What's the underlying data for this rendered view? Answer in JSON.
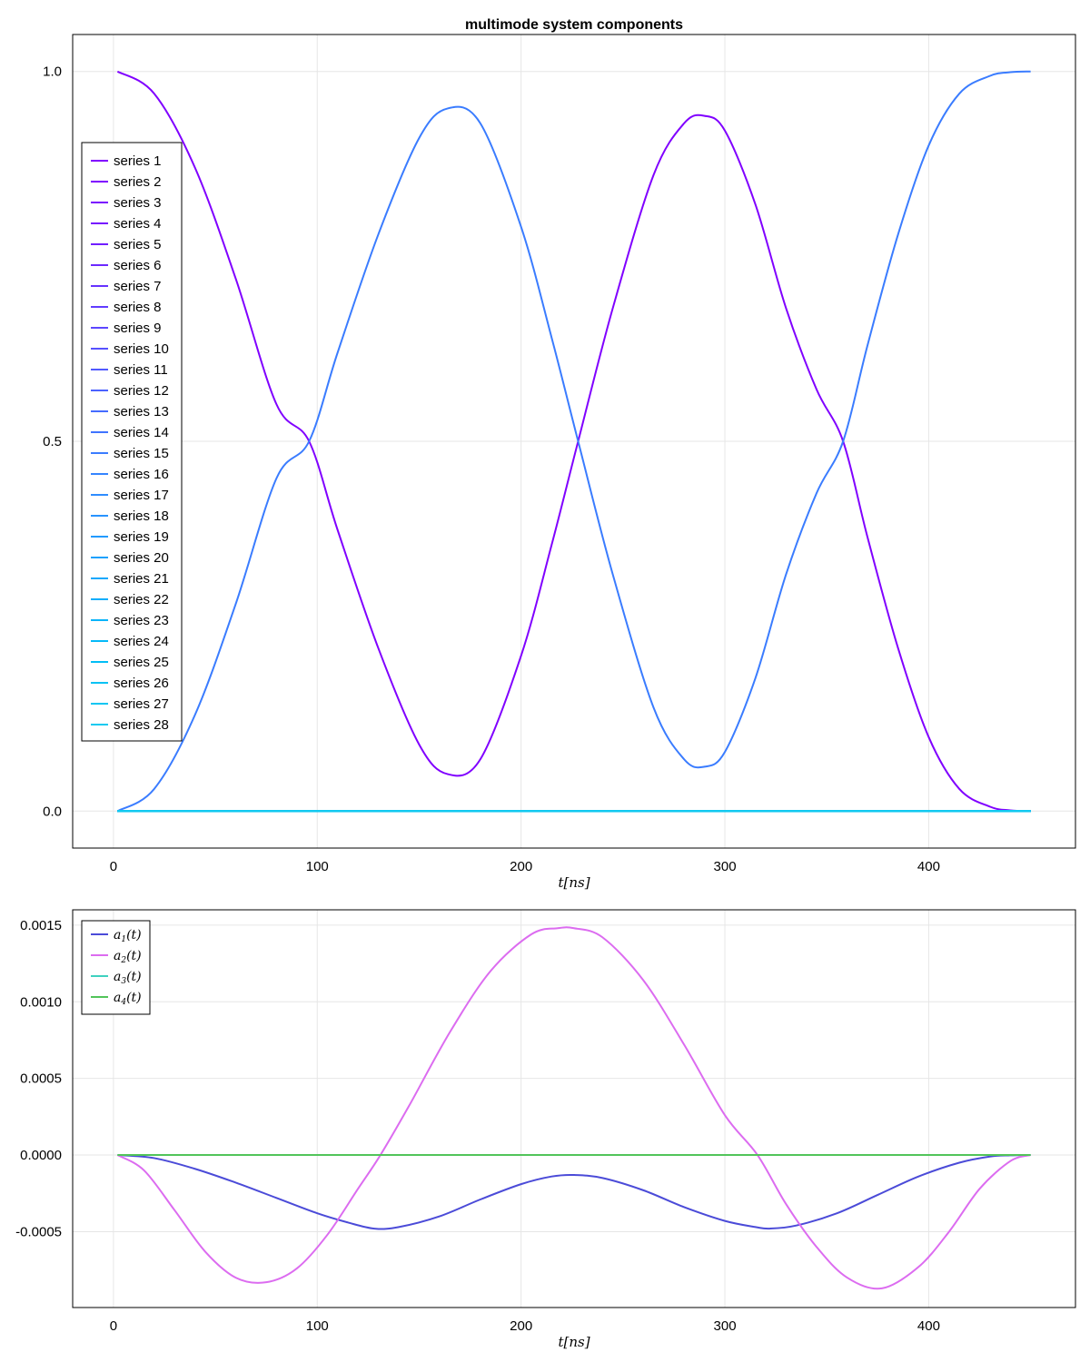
{
  "chart_data": [
    {
      "type": "line",
      "title": "multimode system components",
      "xlabel": "t[ns]",
      "ylabel": "",
      "xlim": [
        -20,
        472
      ],
      "ylim": [
        -0.05,
        1.05
      ],
      "xticks": [
        0,
        100,
        200,
        300,
        400
      ],
      "xtick_labels": [
        "0",
        "100",
        "200",
        "300",
        "400"
      ],
      "yticks": [
        0.0,
        0.5,
        1.0
      ],
      "ytick_labels": [
        "0.0",
        "0.5",
        "1.0"
      ],
      "grid": true,
      "legend_position": "left",
      "series": [
        {
          "name": "series 1",
          "color": "#8000ff",
          "x": [
            2,
            20,
            40,
            60,
            80,
            96,
            110,
            130,
            150,
            164,
            180,
            200,
            215,
            228,
            245,
            265,
            280,
            290,
            300,
            315,
            330,
            345,
            358,
            370,
            385,
            400,
            415,
            430,
            440,
            450
          ],
          "y": [
            1.0,
            0.97,
            0.87,
            0.72,
            0.55,
            0.5,
            0.38,
            0.22,
            0.09,
            0.05,
            0.07,
            0.21,
            0.36,
            0.5,
            0.68,
            0.86,
            0.93,
            0.94,
            0.92,
            0.82,
            0.68,
            0.57,
            0.5,
            0.37,
            0.22,
            0.1,
            0.03,
            0.006,
            0.001,
            0.0
          ]
        },
        {
          "name": "series 2",
          "color": "#7f00ff",
          "x": [
            2,
            450
          ],
          "y": [
            0,
            0
          ]
        },
        {
          "name": "series 3",
          "color": "#7a0aff",
          "x": [
            2,
            450
          ],
          "y": [
            0,
            0
          ]
        },
        {
          "name": "series 4",
          "color": "#7614ff",
          "x": [
            2,
            450
          ],
          "y": [
            0,
            0
          ]
        },
        {
          "name": "series 5",
          "color": "#711eff",
          "x": [
            2,
            450
          ],
          "y": [
            0,
            0
          ]
        },
        {
          "name": "series 6",
          "color": "#6c28ff",
          "x": [
            2,
            450
          ],
          "y": [
            0,
            0
          ]
        },
        {
          "name": "series 7",
          "color": "#6632ff",
          "x": [
            2,
            450
          ],
          "y": [
            0,
            0
          ]
        },
        {
          "name": "series 8",
          "color": "#613cff",
          "x": [
            2,
            450
          ],
          "y": [
            0,
            0
          ]
        },
        {
          "name": "series 9",
          "color": "#5c46ff",
          "x": [
            2,
            450
          ],
          "y": [
            0,
            0
          ]
        },
        {
          "name": "series 10",
          "color": "#5650ff",
          "x": [
            2,
            450
          ],
          "y": [
            0,
            0
          ]
        },
        {
          "name": "series 11",
          "color": "#5159ff",
          "x": [
            2,
            450
          ],
          "y": [
            0,
            0
          ]
        },
        {
          "name": "series 12",
          "color": "#4b62ff",
          "x": [
            2,
            450
          ],
          "y": [
            0,
            0
          ]
        },
        {
          "name": "series 13",
          "color": "#456bff",
          "x": [
            2,
            450
          ],
          "y": [
            0,
            0
          ]
        },
        {
          "name": "series 14",
          "color": "#3f74ff",
          "x": [
            2,
            450
          ],
          "y": [
            0,
            0
          ]
        },
        {
          "name": "series 15",
          "color": "#3a7cff",
          "x": [
            2,
            20,
            40,
            60,
            80,
            96,
            110,
            130,
            150,
            164,
            180,
            200,
            215,
            228,
            245,
            265,
            280,
            290,
            300,
            315,
            330,
            345,
            358,
            370,
            385,
            400,
            415,
            430,
            440,
            450
          ],
          "y": [
            0.0,
            0.03,
            0.13,
            0.28,
            0.45,
            0.5,
            0.62,
            0.78,
            0.91,
            0.95,
            0.93,
            0.79,
            0.64,
            0.5,
            0.32,
            0.14,
            0.07,
            0.06,
            0.08,
            0.18,
            0.32,
            0.43,
            0.5,
            0.63,
            0.78,
            0.9,
            0.97,
            0.994,
            0.999,
            1.0
          ]
        },
        {
          "name": "series 16",
          "color": "#3484ff",
          "x": [
            2,
            450
          ],
          "y": [
            0,
            0
          ]
        },
        {
          "name": "series 17",
          "color": "#2e8cff",
          "x": [
            2,
            450
          ],
          "y": [
            0,
            0
          ]
        },
        {
          "name": "series 18",
          "color": "#2893ff",
          "x": [
            2,
            450
          ],
          "y": [
            0,
            0
          ]
        },
        {
          "name": "series 19",
          "color": "#229afe",
          "x": [
            2,
            450
          ],
          "y": [
            0,
            0
          ]
        },
        {
          "name": "series 20",
          "color": "#1ca1fd",
          "x": [
            2,
            450
          ],
          "y": [
            0,
            0
          ]
        },
        {
          "name": "series 21",
          "color": "#16a8fc",
          "x": [
            2,
            450
          ],
          "y": [
            0,
            0
          ]
        },
        {
          "name": "series 22",
          "color": "#10aefb",
          "x": [
            2,
            450
          ],
          "y": [
            0,
            0
          ]
        },
        {
          "name": "series 23",
          "color": "#0ab4fa",
          "x": [
            2,
            450
          ],
          "y": [
            0,
            0
          ]
        },
        {
          "name": "series 24",
          "color": "#05b9f8",
          "x": [
            2,
            450
          ],
          "y": [
            0,
            0
          ]
        },
        {
          "name": "series 25",
          "color": "#01bef6",
          "x": [
            2,
            450
          ],
          "y": [
            0,
            0
          ]
        },
        {
          "name": "series 26",
          "color": "#06c2f4",
          "x": [
            2,
            450
          ],
          "y": [
            0,
            0
          ]
        },
        {
          "name": "series 27",
          "color": "#0cc6f2",
          "x": [
            2,
            450
          ],
          "y": [
            0,
            0
          ]
        },
        {
          "name": "series 28",
          "color": "#12caf0",
          "x": [
            2,
            450
          ],
          "y": [
            0,
            0
          ]
        }
      ]
    },
    {
      "type": "line",
      "title": "",
      "xlabel": "t[ns]",
      "ylabel": "",
      "xlim": [
        -20,
        472
      ],
      "ylim": [
        -0.000995,
        0.0016
      ],
      "xticks": [
        0,
        100,
        200,
        300,
        400
      ],
      "xtick_labels": [
        "0",
        "100",
        "200",
        "300",
        "400"
      ],
      "yticks": [
        -0.0005,
        0.0,
        0.0005,
        0.001,
        0.0015
      ],
      "ytick_labels": [
        "-0.0005",
        "0.0000",
        "0.0005",
        "0.0010",
        "0.0015"
      ],
      "grid": true,
      "legend_position": "top-left",
      "series": [
        {
          "name": "a1(t)",
          "sub": "1",
          "color": "#4b4bd8",
          "x": [
            2,
            20,
            40,
            60,
            80,
            100,
            115,
            128,
            140,
            160,
            180,
            200,
            215,
            226,
            240,
            260,
            280,
            300,
            315,
            322,
            335,
            355,
            375,
            395,
            415,
            430,
            440,
            450
          ],
          "y": [
            0,
            -2e-05,
            -9e-05,
            -0.00018,
            -0.00028,
            -0.00038,
            -0.00044,
            -0.00048,
            -0.00047,
            -0.0004,
            -0.00029,
            -0.00019,
            -0.00014,
            -0.00013,
            -0.00015,
            -0.00023,
            -0.00034,
            -0.00043,
            -0.00047,
            -0.00048,
            -0.00046,
            -0.00038,
            -0.00026,
            -0.00014,
            -5e-05,
            -1e-05,
            -2e-06,
            0
          ]
        },
        {
          "name": "a2(t)",
          "sub": "2",
          "color": "#dc6cf0",
          "x": [
            2,
            15,
            30,
            45,
            60,
            75,
            90,
            105,
            120,
            131,
            145,
            165,
            185,
            205,
            218,
            226,
            240,
            260,
            280,
            300,
            316,
            330,
            345,
            360,
            377,
            395,
            410,
            425,
            440,
            450
          ],
          "y": [
            0,
            -0.0001,
            -0.00036,
            -0.00063,
            -0.0008,
            -0.00083,
            -0.00074,
            -0.00052,
            -0.00022,
            0.0,
            0.00032,
            0.0008,
            0.0012,
            0.00144,
            0.00148,
            0.00148,
            0.00142,
            0.00114,
            0.00072,
            0.00026,
            0.0,
            -0.00032,
            -0.0006,
            -0.0008,
            -0.00087,
            -0.00073,
            -0.0005,
            -0.00022,
            -4e-05,
            0
          ]
        },
        {
          "name": "a3(t)",
          "sub": "3",
          "color": "#3fd1bf",
          "x": [
            2,
            450
          ],
          "y": [
            0,
            0
          ]
        },
        {
          "name": "a4(t)",
          "sub": "4",
          "color": "#52c45a",
          "x": [
            2,
            450
          ],
          "y": [
            0,
            0
          ]
        }
      ]
    }
  ]
}
